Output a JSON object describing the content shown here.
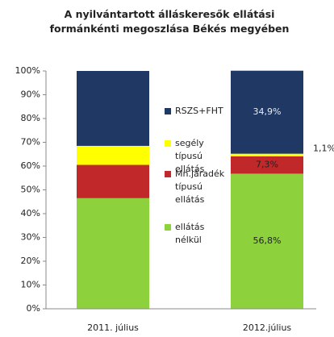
{
  "chart_data": {
    "type": "stacked_bar",
    "title": "A nyilvántartott álláskeresők ellátási\nformánkénti megoszlása Békés megyében",
    "categories": [
      "2011. július",
      "2012.július"
    ],
    "series": [
      {
        "name": "ellátás\nnélkül",
        "color": "#8dd23c",
        "values": [
          46.5,
          56.8
        ],
        "value_labels": [
          null,
          "56,8%"
        ]
      },
      {
        "name": "Mn.járadék\ntípusú\nellátás",
        "color": "#c0282a",
        "values": [
          14,
          7.3
        ],
        "value_labels": [
          null,
          "7,3%"
        ]
      },
      {
        "name": "segély\ntípusú\nellátás",
        "color": "#ffff00",
        "values": [
          8,
          1.1
        ],
        "value_labels": [
          null,
          "1,1%"
        ]
      },
      {
        "name": "RSZS+FHT",
        "color": "#1f3864",
        "values": [
          31.5,
          34.9
        ],
        "value_labels": [
          null,
          "34,9%"
        ]
      }
    ],
    "ylim": [
      0,
      100
    ],
    "yticks": [
      {
        "value": 0,
        "label": "0%"
      },
      {
        "value": 10,
        "label": "10%"
      },
      {
        "value": 20,
        "label": "20%"
      },
      {
        "value": 30,
        "label": "30%"
      },
      {
        "value": 40,
        "label": "40%"
      },
      {
        "value": 50,
        "label": "50%"
      },
      {
        "value": 60,
        "label": "60%"
      },
      {
        "value": 70,
        "label": "70%"
      },
      {
        "value": 80,
        "label": "80%"
      },
      {
        "value": 90,
        "label": "90%"
      },
      {
        "value": 100,
        "label": "100%"
      }
    ]
  }
}
